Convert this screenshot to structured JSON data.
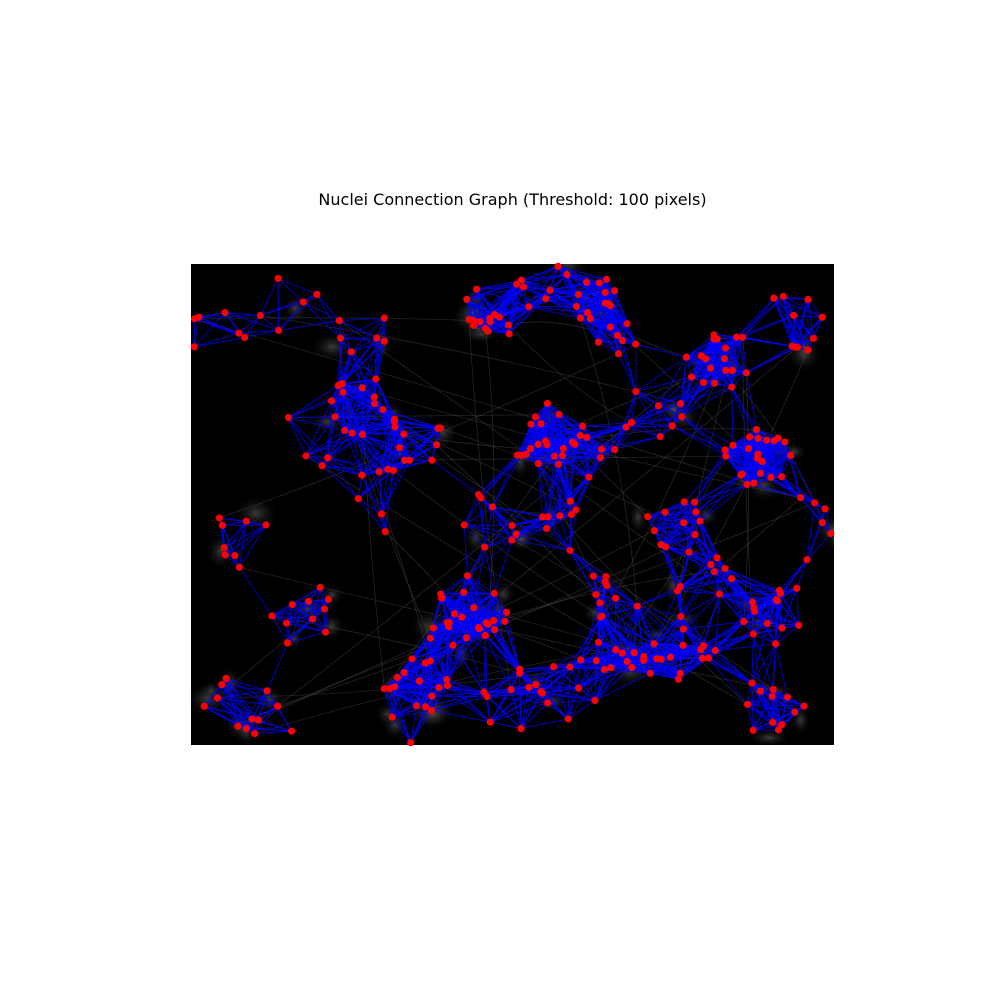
{
  "figure": {
    "title": "Nuclei Connection Graph (Threshold: 100 pixels)"
  },
  "colors": {
    "node": "#ff0000",
    "edge": "#0000ff",
    "background": "#000000",
    "page": "#ffffff"
  },
  "graph": {
    "threshold": 100,
    "kind": "fluorescence-microscopy-nuclei-graph"
  }
}
